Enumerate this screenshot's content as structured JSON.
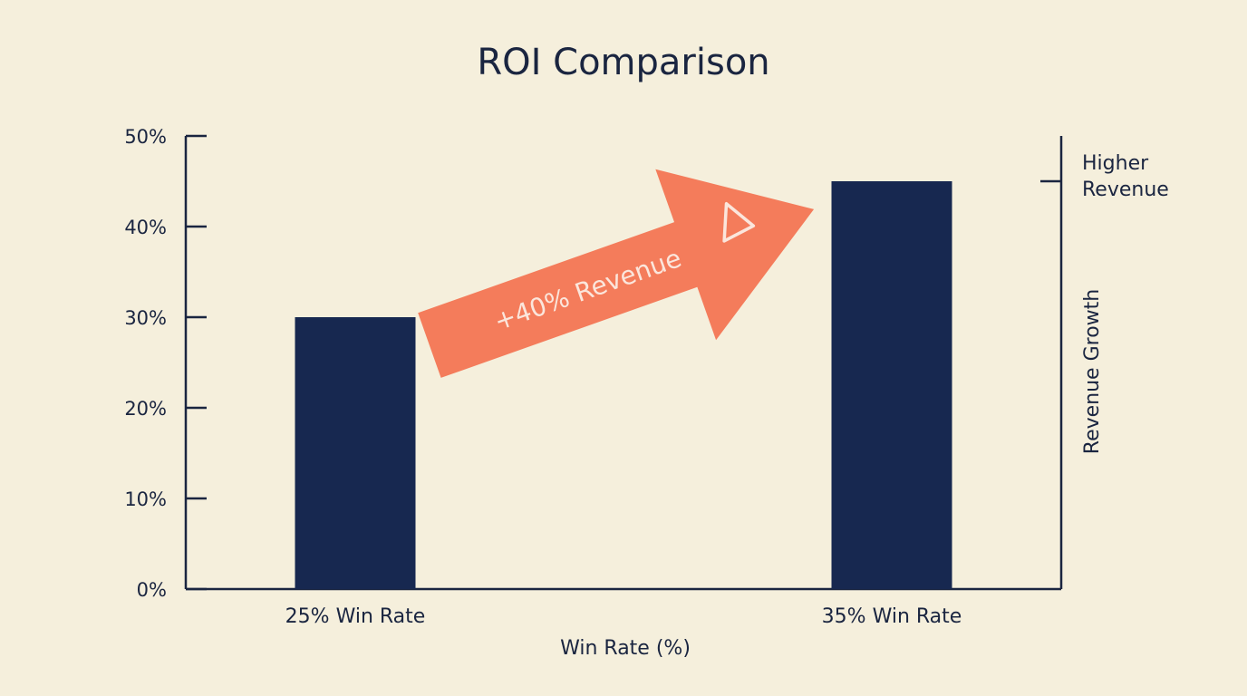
{
  "chart_data": {
    "type": "bar",
    "title": "ROI Comparison",
    "categories": [
      "25% Win Rate",
      "35% Win Rate"
    ],
    "values": [
      30,
      45
    ],
    "xlabel": "Win Rate (%)",
    "ylim": [
      0,
      50
    ],
    "yticks": [
      0,
      10,
      20,
      30,
      40,
      50
    ],
    "ytick_suffix": "%",
    "secondary_axis": {
      "label": "Revenue Growth",
      "marker_label_lines": [
        "Higher",
        "Revenue"
      ],
      "marker_value": 45
    },
    "annotation": {
      "text": "+40% Revenue",
      "from_category": 0,
      "to_category": 1
    },
    "colors": {
      "bar": "#172850",
      "axis": "#1a2540",
      "arrow": "#f47c5b",
      "arrow_text": "#fbe6dc",
      "background": "#f5efdc"
    },
    "grid": false,
    "legend": "none"
  }
}
